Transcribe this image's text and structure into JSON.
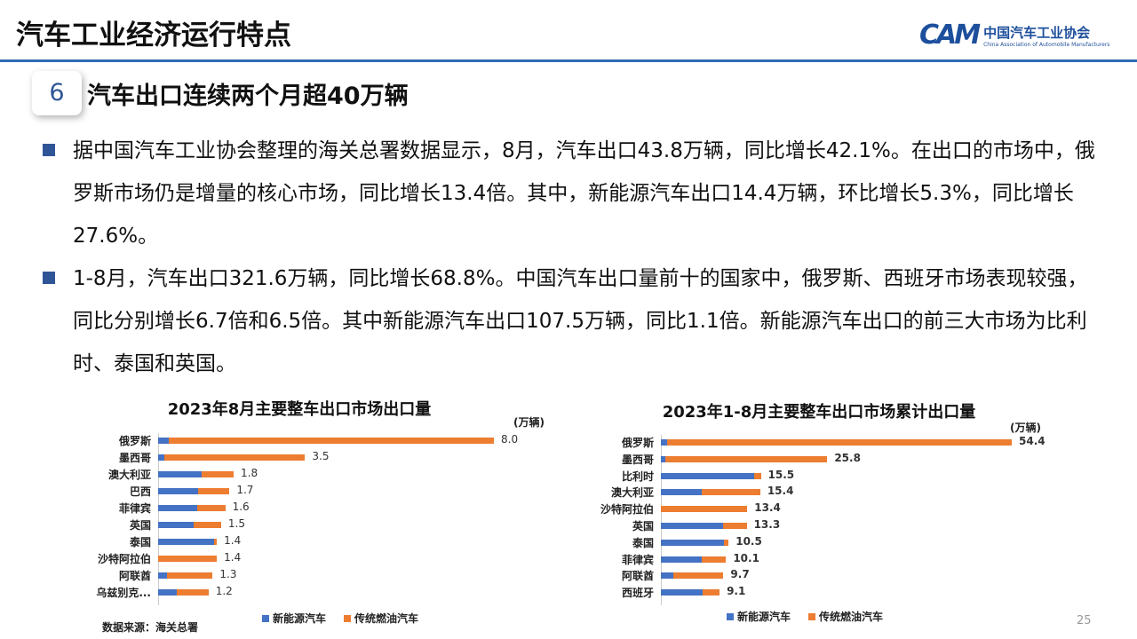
{
  "header": {
    "title": "汽车工业经济运行特点",
    "logo_cn": "中国汽车工业协会",
    "logo_en": "China Association of Automobile Manufacturers",
    "logo_mark": "CAM"
  },
  "section": {
    "number": "6",
    "title": "汽车出口连续两个月超40万辆"
  },
  "bullets": [
    "据中国汽车工业协会整理的海关总署数据显示，8月，汽车出口43.8万辆，同比增长42.1%。在出口的市场中，俄罗斯市场仍是增量的核心市场，同比增长13.4倍。其中，新能源汽车出口14.4万辆，环比增长5.3%，同比增长27.6%。",
    "1-8月，汽车出口321.6万辆，同比增长68.8%。中国汽车出口量前十的国家中，俄罗斯、西班牙市场表现较强，同比分别增长6.7倍和6.5倍。其中新能源汽车出口107.5万辆，同比1.1倍。新能源汽车出口的前三大市场为比利时、泰国和英国。"
  ],
  "chart_data": [
    {
      "type": "bar",
      "stacked": true,
      "orientation": "horizontal",
      "title": "2023年8月主要整车出口市场出口量",
      "unit": "(万辆)",
      "categories": [
        "俄罗斯",
        "墨西哥",
        "澳大利亚",
        "巴西",
        "菲律宾",
        "英国",
        "泰国",
        "沙特阿拉伯",
        "阿联酋",
        "乌兹别克..."
      ],
      "totals": [
        "8.0",
        "3.5",
        "1.8",
        "1.7",
        "1.6",
        "1.5",
        "1.4",
        "1.4",
        "1.3",
        "1.2"
      ],
      "series": [
        {
          "name": "新能源汽车",
          "color": "#4472c4",
          "values": [
            0.26,
            0.14,
            1.04,
            0.95,
            0.93,
            0.85,
            1.34,
            0,
            0.21,
            0.44
          ]
        },
        {
          "name": "传统燃油汽车",
          "color": "#ed7d31",
          "values": [
            7.74,
            3.36,
            0.76,
            0.75,
            0.67,
            0.65,
            0.06,
            1.4,
            1.09,
            0.76
          ]
        }
      ],
      "xlim": [
        0,
        8
      ]
    },
    {
      "type": "bar",
      "stacked": true,
      "orientation": "horizontal",
      "title": "2023年1-8月主要整车出口市场累计出口量",
      "unit": "(万辆)",
      "categories": [
        "俄罗斯",
        "墨西哥",
        "比利时",
        "澳大利亚",
        "沙特阿拉伯",
        "英国",
        "泰国",
        "菲律宾",
        "阿联酋",
        "西班牙"
      ],
      "totals": [
        "54.4",
        "25.8",
        "15.5",
        "15.4",
        "13.4",
        "13.3",
        "10.5",
        "10.1",
        "9.7",
        "9.1"
      ],
      "series": [
        {
          "name": "新能源汽车",
          "color": "#4472c4",
          "values": [
            0.9,
            0.7,
            14.4,
            6.4,
            0,
            9.6,
            9.8,
            6.4,
            1.9,
            6.5
          ]
        },
        {
          "name": "传统燃油汽车",
          "color": "#ed7d31",
          "values": [
            53.5,
            25.1,
            1.1,
            9.0,
            13.4,
            3.7,
            0.7,
            3.7,
            7.8,
            2.6
          ]
        }
      ],
      "xlim": [
        0,
        54.4
      ]
    }
  ],
  "footer": {
    "source": "数据来源：海关总署",
    "page": "25"
  }
}
